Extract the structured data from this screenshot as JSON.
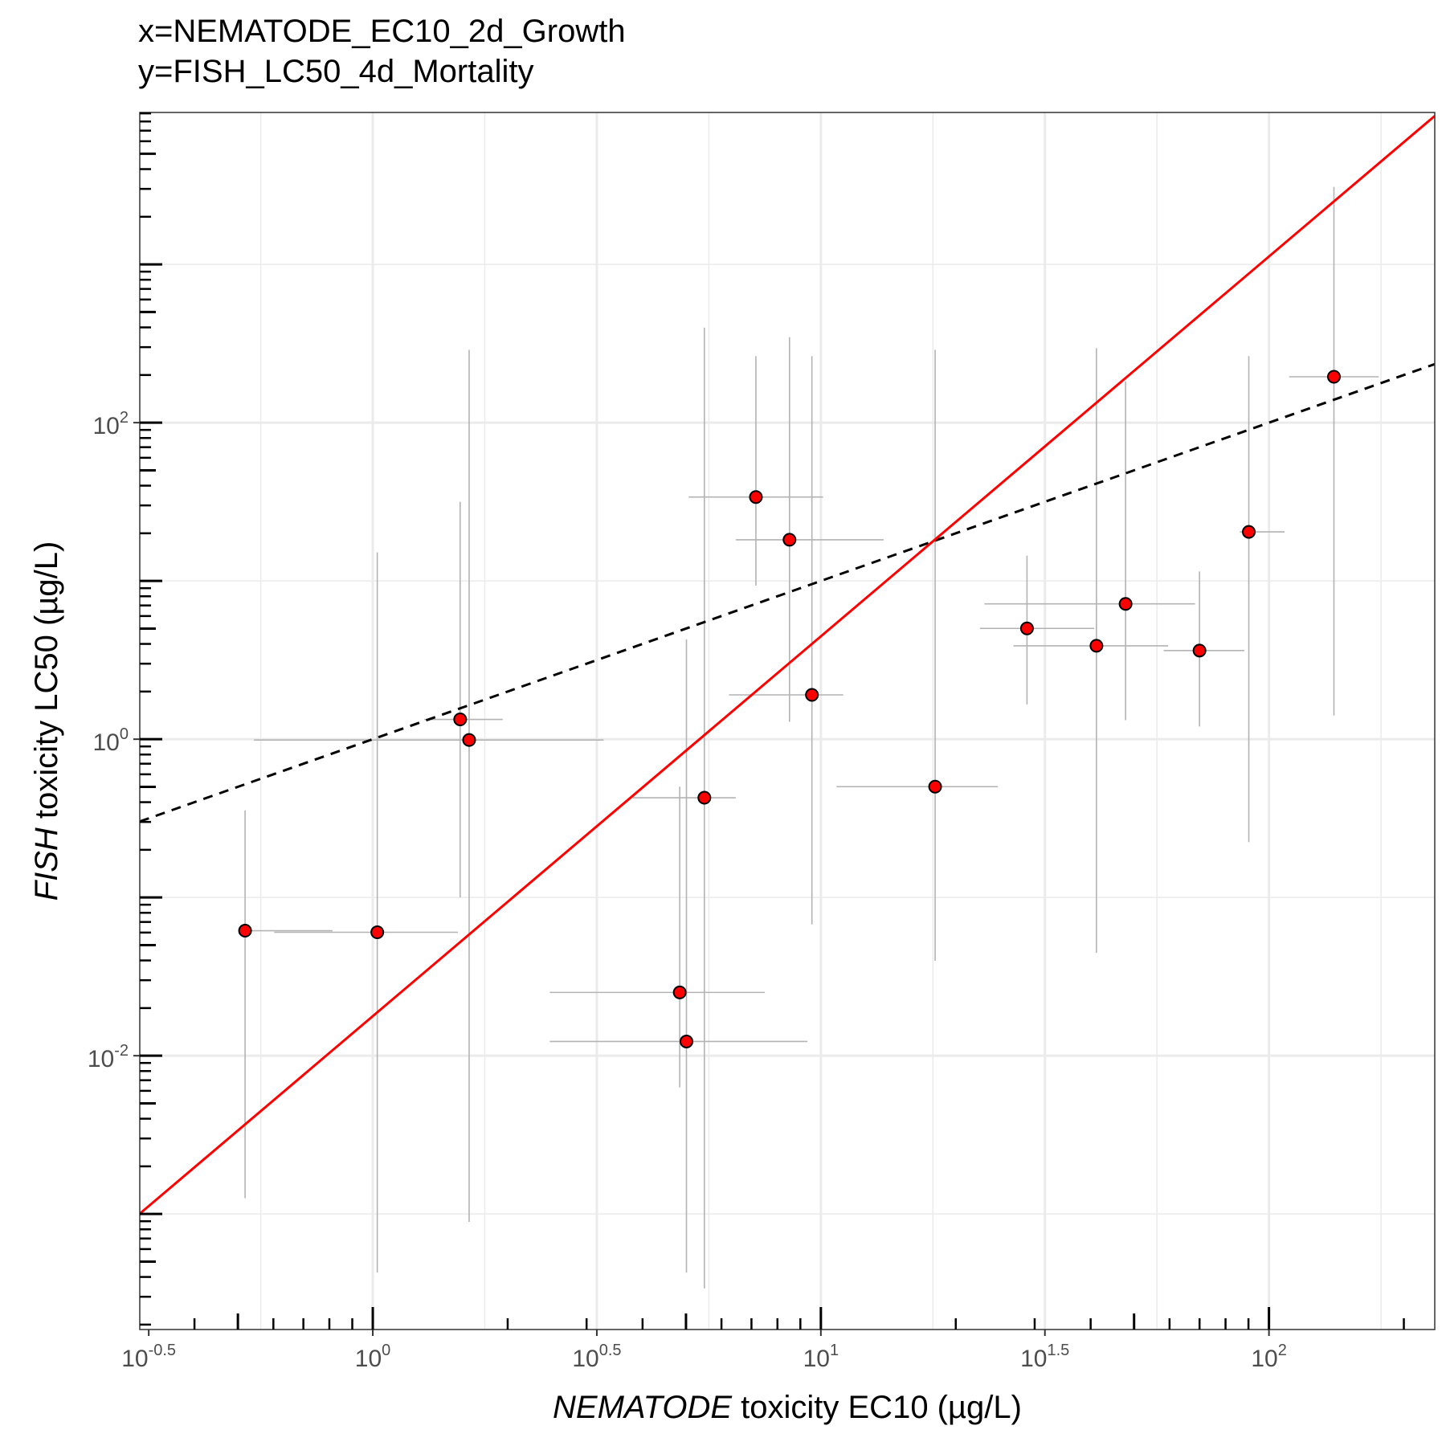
{
  "title_lines": [
    "x=NEMATODE_EC10_2d_Growth",
    "y=FISH_LC50_4d_Mortality"
  ],
  "x_axis": {
    "label_italic": "NEMATODE",
    "label_rest": " toxicity EC10 (µg/L)",
    "scale": "log10",
    "range_log10": [
      -0.52,
      2.37
    ],
    "ticks": [
      {
        "base": "10",
        "exp": "-0.5",
        "value_log10": -0.5
      },
      {
        "base": "10",
        "exp": "0",
        "value_log10": 0
      },
      {
        "base": "10",
        "exp": "0.5",
        "value_log10": 0.5
      },
      {
        "base": "10",
        "exp": "1",
        "value_log10": 1
      },
      {
        "base": "10",
        "exp": "1.5",
        "value_log10": 1.5
      },
      {
        "base": "10",
        "exp": "2",
        "value_log10": 2
      }
    ]
  },
  "y_axis": {
    "label_italic": "FISH",
    "label_rest": " toxicity LC50 (µg/L)",
    "scale": "log10",
    "range_log10": [
      -3.73,
      3.96
    ],
    "ticks": [
      {
        "base": "10",
        "exp": "-2",
        "value_log10": -2
      },
      {
        "base": "10",
        "exp": "0",
        "value_log10": 0
      },
      {
        "base": "10",
        "exp": "2",
        "value_log10": 2
      }
    ]
  },
  "chart_data": {
    "type": "scatter",
    "grid": true,
    "point_color": "#ff0000",
    "errorbar_color": "#b3b3b3",
    "fit_line": {
      "color": "#ff0000",
      "style": "solid",
      "slope": 2.4,
      "intercept_log10": -1.75
    },
    "reference_line": {
      "color": "#000000",
      "style": "dashed",
      "description": "1:1",
      "slope": 1,
      "intercept_log10": 0
    },
    "points": [
      {
        "x": -0.285,
        "y": -1.21,
        "xmin": -0.285,
        "xmax": -0.09,
        "ymin": -2.9,
        "ymax": -0.45
      },
      {
        "x": 0.01,
        "y": -1.22,
        "xmin": -0.22,
        "xmax": 0.19,
        "ymin": -3.37,
        "ymax": 1.18
      },
      {
        "x": 0.195,
        "y": 0.125,
        "xmin": 0.115,
        "xmax": 0.29,
        "ymin": -1.0,
        "ymax": 1.5
      },
      {
        "x": 0.215,
        "y": -0.005,
        "xmin": -0.265,
        "xmax": 0.515,
        "ymin": -3.05,
        "ymax": 2.46
      },
      {
        "x": 0.685,
        "y": -1.6,
        "xmin": 0.395,
        "xmax": 0.875,
        "ymin": -2.2,
        "ymax": -0.3
      },
      {
        "x": 0.7,
        "y": -1.91,
        "xmin": 0.395,
        "xmax": 0.97,
        "ymin": -3.37,
        "ymax": 0.63
      },
      {
        "x": 0.74,
        "y": -0.37,
        "xmin": 0.58,
        "xmax": 0.81,
        "ymin": -3.47,
        "ymax": 2.6
      },
      {
        "x": 0.855,
        "y": 1.53,
        "xmin": 0.705,
        "xmax": 1.005,
        "ymin": 0.97,
        "ymax": 2.42
      },
      {
        "x": 0.93,
        "y": 1.26,
        "xmin": 0.81,
        "xmax": 1.14,
        "ymin": 0.11,
        "ymax": 2.54
      },
      {
        "x": 0.98,
        "y": 0.28,
        "xmin": 0.795,
        "xmax": 1.05,
        "ymin": -1.17,
        "ymax": 2.42
      },
      {
        "x": 1.255,
        "y": -0.3,
        "xmin": 1.035,
        "xmax": 1.395,
        "ymin": -1.4,
        "ymax": 2.46
      },
      {
        "x": 1.46,
        "y": 0.7,
        "xmin": 1.355,
        "xmax": 1.61,
        "ymin": 0.22,
        "ymax": 1.16
      },
      {
        "x": 1.615,
        "y": 0.59,
        "xmin": 1.43,
        "xmax": 1.775,
        "ymin": -1.35,
        "ymax": 2.47
      },
      {
        "x": 1.68,
        "y": 0.855,
        "xmin": 1.365,
        "xmax": 1.835,
        "ymin": 0.12,
        "ymax": 2.26
      },
      {
        "x": 1.845,
        "y": 0.56,
        "xmin": 1.765,
        "xmax": 1.945,
        "ymin": 0.08,
        "ymax": 1.06
      },
      {
        "x": 1.955,
        "y": 1.31,
        "xmin": 1.935,
        "xmax": 2.035,
        "ymin": -0.65,
        "ymax": 2.42
      },
      {
        "x": 2.145,
        "y": 2.29,
        "xmin": 2.045,
        "xmax": 2.245,
        "ymin": 0.15,
        "ymax": 3.49
      }
    ]
  }
}
